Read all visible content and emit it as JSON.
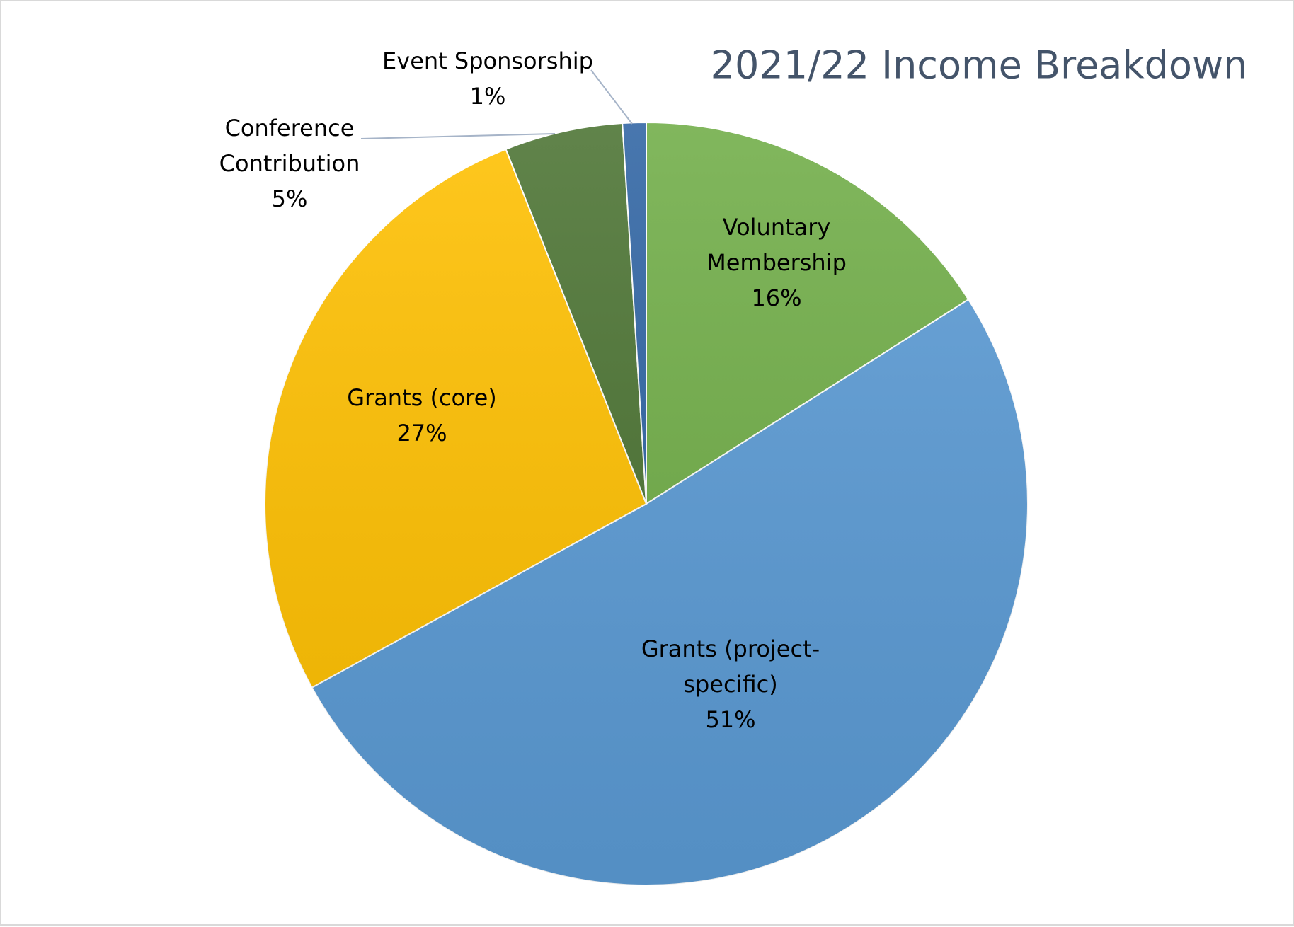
{
  "chart_data": {
    "type": "pie",
    "title": "2021/22 Income Breakdown",
    "categories": [
      "Voluntary Membership",
      "Grants (project-specific)",
      "Grants (core)",
      "Conference Contribution",
      "Event Sponsorship"
    ],
    "values": [
      16,
      51,
      27,
      5,
      1
    ],
    "value_labels": [
      "16%",
      "51%",
      "27%",
      "5%",
      "1%"
    ],
    "colors": [
      "#70ad47",
      "#5b9bd5",
      "#ffc000",
      "#4b7332",
      "#2f64a3"
    ]
  }
}
